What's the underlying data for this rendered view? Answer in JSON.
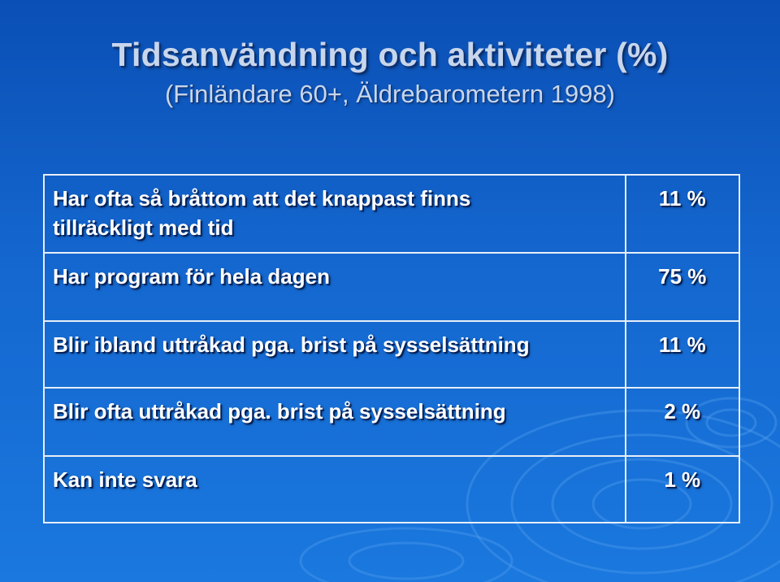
{
  "slide": {
    "title": "Tidsanvändning och aktiviteter (%)",
    "subtitle": "(Finländare 60+, Äldrebarometern 1998)"
  },
  "table": {
    "rows": [
      {
        "label_line1": "Har ofta så bråttom att det knappast finns",
        "label_line2": "tillräckligt med tid",
        "value": "11 %"
      },
      {
        "label": "Har program för hela dagen",
        "value": "75 %"
      },
      {
        "label": "Blir ibland uttråkad pga. brist på sysselsättning",
        "value": "11 %"
      },
      {
        "label": "Blir ofta uttråkad pga. brist på sysselsättning",
        "value": "2 %"
      },
      {
        "label": "Kan inte svara",
        "value": "1 %"
      }
    ]
  }
}
